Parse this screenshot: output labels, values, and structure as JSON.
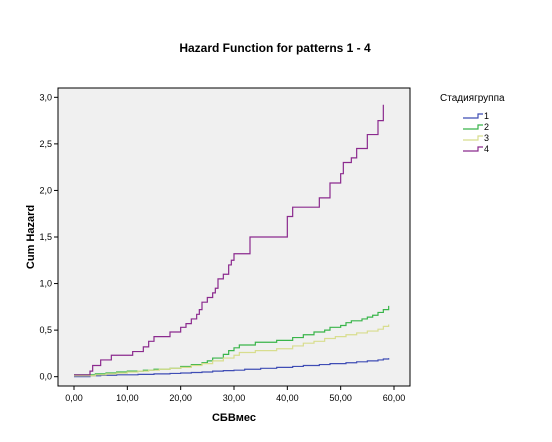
{
  "chart_data": {
    "type": "line",
    "title": "Hazard Function for patterns 1 - 4",
    "xlabel": "СБВмес",
    "ylabel": "Cum Hazard",
    "xlim": [
      -3,
      63
    ],
    "ylim": [
      -0.1,
      3.1
    ],
    "xticks": [
      0,
      10,
      20,
      30,
      40,
      50,
      60
    ],
    "xtick_labels": [
      "0,00",
      "10,00",
      "20,00",
      "30,00",
      "40,00",
      "50,00",
      "60,00"
    ],
    "yticks": [
      0,
      0.5,
      1,
      1.5,
      2,
      2.5,
      3
    ],
    "ytick_labels": [
      "0,0",
      "0,5",
      "1,0",
      "1,5",
      "2,0",
      "2,5",
      "3,0"
    ],
    "grid": false,
    "plot_background": "#f0f0f0",
    "legend": {
      "title": "Стадиягруппа",
      "position": "right"
    },
    "series": [
      {
        "name": "1",
        "color": "#3f4db5",
        "step": true,
        "points": [
          [
            0,
            0
          ],
          [
            3,
            0.01
          ],
          [
            5,
            0.015
          ],
          [
            8,
            0.02
          ],
          [
            12,
            0.025
          ],
          [
            15,
            0.03
          ],
          [
            18,
            0.035
          ],
          [
            20,
            0.04
          ],
          [
            22,
            0.045
          ],
          [
            24,
            0.05
          ],
          [
            26,
            0.06
          ],
          [
            28,
            0.065
          ],
          [
            30,
            0.07
          ],
          [
            32,
            0.08
          ],
          [
            35,
            0.09
          ],
          [
            38,
            0.1
          ],
          [
            41,
            0.11
          ],
          [
            43,
            0.12
          ],
          [
            46,
            0.13
          ],
          [
            48,
            0.14
          ],
          [
            51,
            0.15
          ],
          [
            53,
            0.16
          ],
          [
            55,
            0.17
          ],
          [
            57,
            0.18
          ],
          [
            58,
            0.19
          ],
          [
            59,
            0.2
          ]
        ]
      },
      {
        "name": "2",
        "color": "#39b54a",
        "step": true,
        "points": [
          [
            0,
            0.02
          ],
          [
            4,
            0.03
          ],
          [
            6,
            0.04
          ],
          [
            8,
            0.05
          ],
          [
            10,
            0.06
          ],
          [
            13,
            0.07
          ],
          [
            15,
            0.08
          ],
          [
            18,
            0.09
          ],
          [
            20,
            0.11
          ],
          [
            22,
            0.13
          ],
          [
            24,
            0.15
          ],
          [
            25,
            0.17
          ],
          [
            26,
            0.2
          ],
          [
            28,
            0.24
          ],
          [
            29,
            0.28
          ],
          [
            30,
            0.31
          ],
          [
            31,
            0.34
          ],
          [
            34,
            0.37
          ],
          [
            38,
            0.39
          ],
          [
            41,
            0.42
          ],
          [
            43,
            0.45
          ],
          [
            45,
            0.48
          ],
          [
            47,
            0.5
          ],
          [
            48,
            0.53
          ],
          [
            50,
            0.55
          ],
          [
            51,
            0.58
          ],
          [
            52,
            0.6
          ],
          [
            54,
            0.62
          ],
          [
            55,
            0.64
          ],
          [
            56,
            0.66
          ],
          [
            57,
            0.69
          ],
          [
            58,
            0.72
          ],
          [
            59,
            0.76
          ]
        ]
      },
      {
        "name": "3",
        "color": "#d8dd8e",
        "step": true,
        "points": [
          [
            0,
            0.01
          ],
          [
            4,
            0.02
          ],
          [
            6,
            0.03
          ],
          [
            8,
            0.04
          ],
          [
            10,
            0.05
          ],
          [
            12,
            0.06
          ],
          [
            14,
            0.07
          ],
          [
            16,
            0.08
          ],
          [
            18,
            0.09
          ],
          [
            20,
            0.1
          ],
          [
            22,
            0.12
          ],
          [
            24,
            0.14
          ],
          [
            26,
            0.17
          ],
          [
            28,
            0.2
          ],
          [
            30,
            0.23
          ],
          [
            31,
            0.26
          ],
          [
            34,
            0.28
          ],
          [
            38,
            0.3
          ],
          [
            41,
            0.33
          ],
          [
            43,
            0.36
          ],
          [
            45,
            0.38
          ],
          [
            47,
            0.41
          ],
          [
            49,
            0.43
          ],
          [
            51,
            0.45
          ],
          [
            53,
            0.47
          ],
          [
            55,
            0.49
          ],
          [
            57,
            0.51
          ],
          [
            58,
            0.54
          ],
          [
            59,
            0.56
          ]
        ]
      },
      {
        "name": "4",
        "color": "#8b2a8e",
        "step": true,
        "points": [
          [
            0,
            0.02
          ],
          [
            3,
            0.06
          ],
          [
            3.5,
            0.12
          ],
          [
            5,
            0.18
          ],
          [
            7,
            0.23
          ],
          [
            11,
            0.27
          ],
          [
            13,
            0.32
          ],
          [
            14,
            0.38
          ],
          [
            15,
            0.43
          ],
          [
            18,
            0.48
          ],
          [
            20,
            0.53
          ],
          [
            21,
            0.57
          ],
          [
            22,
            0.62
          ],
          [
            23,
            0.67
          ],
          [
            23.5,
            0.72
          ],
          [
            24,
            0.8
          ],
          [
            25,
            0.85
          ],
          [
            26,
            0.9
          ],
          [
            26.5,
            0.95
          ],
          [
            27,
            1.05
          ],
          [
            28,
            1.1
          ],
          [
            29,
            1.2
          ],
          [
            29.5,
            1.25
          ],
          [
            30,
            1.32
          ],
          [
            33,
            1.5
          ],
          [
            40,
            1.72
          ],
          [
            41,
            1.82
          ],
          [
            46,
            1.92
          ],
          [
            48,
            2.08
          ],
          [
            50,
            2.18
          ],
          [
            50.5,
            2.3
          ],
          [
            52,
            2.35
          ],
          [
            53,
            2.45
          ],
          [
            55,
            2.6
          ],
          [
            57,
            2.75
          ],
          [
            58,
            2.92
          ]
        ]
      }
    ]
  }
}
